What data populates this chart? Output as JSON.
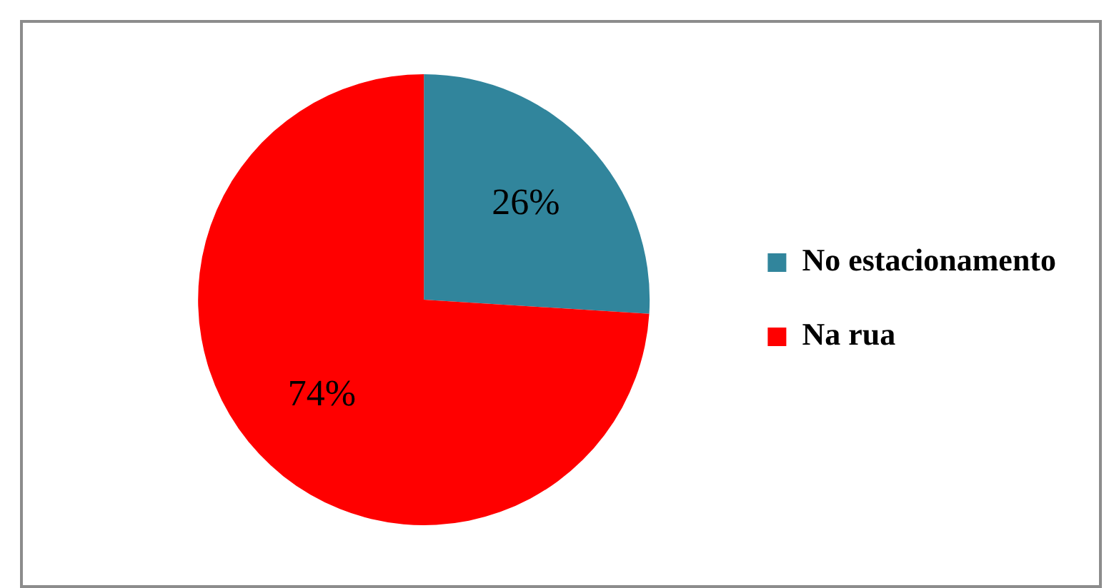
{
  "chart_data": {
    "type": "pie",
    "categories": [
      "No estacionamento",
      "Na rua"
    ],
    "values": [
      26,
      74
    ],
    "colors": [
      "#31859c",
      "#ff0000"
    ],
    "value_labels": [
      "26%",
      "74%"
    ],
    "legend": "right"
  }
}
